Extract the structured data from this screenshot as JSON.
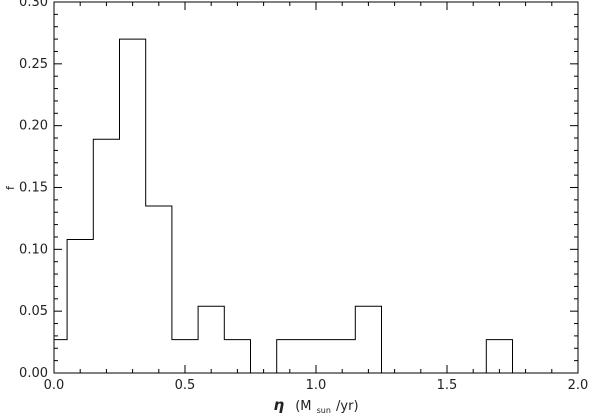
{
  "chart_data": {
    "type": "bar",
    "subtype": "step-histogram",
    "xlabel": {
      "symbol": "η",
      "open": "(M",
      "subscript": "sun",
      "close": "/yr)"
    },
    "ylabel": "f",
    "xlim": [
      0.0,
      2.0
    ],
    "ylim": [
      0.0,
      0.3
    ],
    "x_ticks": [
      0.0,
      0.5,
      1.0,
      1.5,
      2.0
    ],
    "x_tick_labels": [
      "0.0",
      "0.5",
      "1.0",
      "1.5",
      "2.0"
    ],
    "y_ticks": [
      0.0,
      0.05,
      0.1,
      0.15,
      0.2,
      0.25,
      0.3
    ],
    "y_tick_labels": [
      "0.00",
      "0.05",
      "0.10",
      "0.15",
      "0.20",
      "0.25",
      "0.30"
    ],
    "bin_edges": [
      -0.05,
      0.05,
      0.15,
      0.25,
      0.35,
      0.45,
      0.55,
      0.65,
      0.75,
      0.85,
      0.95,
      1.05,
      1.15,
      1.25,
      1.35,
      1.45,
      1.55,
      1.65,
      1.75,
      1.85,
      1.95,
      2.05
    ],
    "values": [
      0.027,
      0.108,
      0.189,
      0.27,
      0.135,
      0.027,
      0.054,
      0.027,
      0.0,
      0.027,
      0.027,
      0.027,
      0.054,
      0.0,
      0.0,
      0.0,
      0.0,
      0.027,
      0.0,
      0.0,
      0.0
    ],
    "grid": false,
    "legend": "none",
    "line_color": "#000000"
  }
}
